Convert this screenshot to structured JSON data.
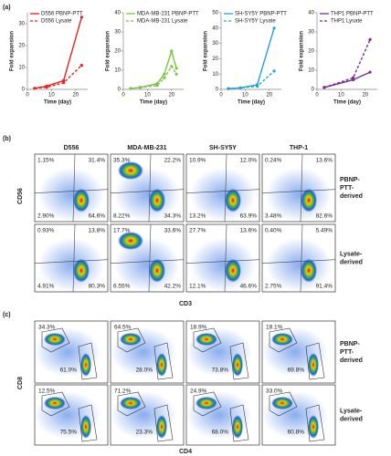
{
  "panel_labels": [
    "(a)",
    "(b)",
    "(c)"
  ],
  "chart_data": [
    {
      "type": "line",
      "y_label": "Fold expansion",
      "x_label": "Time (day)",
      "x": [
        3,
        8,
        15,
        22.5
      ],
      "xlim": [
        0,
        25
      ],
      "xticks": [
        0,
        10,
        20
      ],
      "ylim": [
        0,
        35
      ],
      "yticks": [
        0,
        10,
        20,
        30
      ],
      "series": [
        {
          "name": "D556 PBNP-PTT",
          "color": "#e8211c",
          "line_style": "solid",
          "values": [
            0.5,
            1.5,
            4,
            33
          ]
        },
        {
          "name": "D556 Lysate",
          "color": "#e8211c",
          "line_style": "dashed",
          "values": [
            0.5,
            1,
            3,
            11
          ]
        }
      ]
    },
    {
      "type": "line",
      "y_label": "Fold expansion",
      "x_label": "Time (day)",
      "x": [
        3,
        7,
        14,
        17,
        20,
        22
      ],
      "xlim": [
        0,
        25
      ],
      "xticks": [
        0,
        10,
        20
      ],
      "ylim": [
        0,
        40
      ],
      "yticks": [
        0,
        10,
        20,
        30,
        40
      ],
      "series": [
        {
          "name": "MDA-MB-231 PBNP-PTT",
          "color": "#7cc443",
          "line_style": "solid",
          "values": [
            0.5,
            1,
            3,
            8,
            20,
            11
          ]
        },
        {
          "name": "MDA-MB-231 Lysate",
          "color": "#7cc443",
          "line_style": "dashed",
          "values": [
            0.5,
            1,
            2,
            6,
            12,
            8
          ]
        }
      ]
    },
    {
      "type": "line",
      "y_label": "Fold expansion",
      "x_label": "Time (day)",
      "x": [
        3,
        8,
        15,
        22
      ],
      "xlim": [
        0,
        25
      ],
      "xticks": [
        0,
        10,
        20
      ],
      "ylim": [
        0,
        50
      ],
      "yticks": [
        0,
        10,
        20,
        30,
        40,
        50
      ],
      "series": [
        {
          "name": "SH-SY5Y PBNP-PTT",
          "color": "#1fa3dc",
          "line_style": "solid",
          "values": [
            0.5,
            1,
            3,
            40
          ]
        },
        {
          "name": "SH-SY5Y Lysate",
          "color": "#1fa3dc",
          "line_style": "dashed",
          "values": [
            0.5,
            1,
            2,
            12
          ]
        }
      ]
    },
    {
      "type": "line",
      "y_label": "Fold expansion",
      "x_label": "Time (day)",
      "x": [
        3,
        15,
        22
      ],
      "xlim": [
        0,
        25
      ],
      "xticks": [
        0,
        10,
        20
      ],
      "ylim": [
        0,
        40
      ],
      "yticks": [
        0,
        10,
        20,
        30,
        40
      ],
      "series": [
        {
          "name": "THP1 PBNP-PTT",
          "color": "#7a2d91",
          "line_style": "solid",
          "values": [
            1,
            5,
            9
          ]
        },
        {
          "name": "THP1 Lysate",
          "color": "#7a2d91",
          "line_style": "dashed",
          "values": [
            1,
            6,
            26
          ]
        }
      ]
    }
  ],
  "flow_cd56_cd3": {
    "y_label": "CD56",
    "x_label": "CD3",
    "columns": [
      {
        "name": "D556",
        "color": "#e8211c"
      },
      {
        "name": "MDA-MB-231",
        "color": "#7cc443"
      },
      {
        "name": "SH-SY5Y",
        "color": "#1fa3dc"
      },
      {
        "name": "THP-1",
        "color": "#7a2d91"
      }
    ],
    "rows": [
      {
        "label_lines": [
          "PBNP-",
          "PTT-",
          "derived"
        ],
        "plots": [
          {
            "ul": "1.15%",
            "ur": "31.4%",
            "ll": "2.90%",
            "lr": "64.6%"
          },
          {
            "ul": "35.3%",
            "ur": "22.2%",
            "ll": "8.22%",
            "lr": "34.3%"
          },
          {
            "ul": "10.9%",
            "ur": "12.0%",
            "ll": "13.2%",
            "lr": "63.9%"
          },
          {
            "ul": "0.24%",
            "ur": "13.6%",
            "ll": "3.48%",
            "lr": "82.6%"
          }
        ]
      },
      {
        "label_lines": [
          "Lysate-",
          "derived"
        ],
        "plots": [
          {
            "ul": "0.93%",
            "ur": "13.8%",
            "ll": "4.91%",
            "lr": "80.3%"
          },
          {
            "ul": "17.7%",
            "ur": "33.6%",
            "ll": "6.55%",
            "lr": "42.2%"
          },
          {
            "ul": "27.7%",
            "ur": "13.6%",
            "ll": "12.1%",
            "lr": "46.6%"
          },
          {
            "ul": "0.40%",
            "ur": "5.49%",
            "ll": "2.75%",
            "lr": "91.4%"
          }
        ]
      }
    ]
  },
  "flow_cd8_cd4": {
    "y_label": "CD8",
    "x_label": "CD4",
    "rows": [
      {
        "label_lines": [
          "PBNP-",
          "PTT-",
          "derived"
        ],
        "plots": [
          {
            "cd8": "34.3%",
            "cd4": "61.0%"
          },
          {
            "cd8": "64.5%",
            "cd4": "28.0%"
          },
          {
            "cd8": "18.9%",
            "cd4": "73.8%"
          },
          {
            "cd8": "18.1%",
            "cd4": "69.8%"
          }
        ]
      },
      {
        "label_lines": [
          "Lysate-",
          "derived"
        ],
        "plots": [
          {
            "cd8": "12.5%",
            "cd4": "75.5%"
          },
          {
            "cd8": "71.2%",
            "cd4": "23.3%"
          },
          {
            "cd8": "24.9%",
            "cd4": "68.0%"
          },
          {
            "cd8": "33.0%",
            "cd4": "60.8%"
          }
        ]
      }
    ]
  }
}
